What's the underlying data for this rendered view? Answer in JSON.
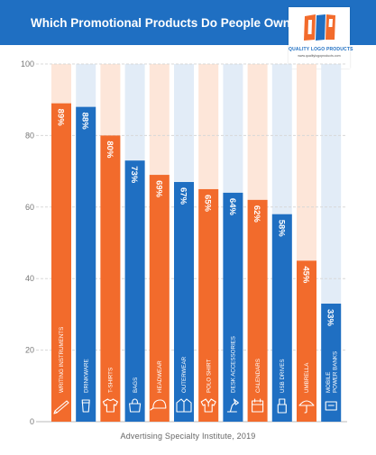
{
  "title": "Which Promotional Products Do People Own?",
  "logo": {
    "name": "QUALITY LOGO PRODUCTS",
    "url": "www.qualitylogoproducts.com"
  },
  "source": "Advertising Specialty Institute, 2019",
  "colors": {
    "header": "#1f6fc2",
    "orange": "#f26b2c",
    "blue": "#1f6fc2",
    "orange_track": "#fde6d9",
    "blue_track": "#e2ecf7",
    "gridline": "#d8d8d8"
  },
  "chart_data": {
    "type": "bar",
    "title": "Which Promotional Products Do People Own?",
    "xlabel": "",
    "ylabel": "",
    "ylim": [
      0,
      100
    ],
    "yticks": [
      0,
      20,
      40,
      60,
      80,
      100
    ],
    "grid": true,
    "categories": [
      "WRITING INSTRUMENTS",
      "DRINKWARE",
      "T-SHIRTS",
      "BAGS",
      "HEADWEAR",
      "OUTERWEAR",
      "POLO SHIRT",
      "DESK ACCESSORIES",
      "CALENDARS",
      "USB DRIVES",
      "UMBRELLA",
      "MOBILE POWER BANKS"
    ],
    "category_label_lines": [
      [
        "WRITING INSTRUMENTS"
      ],
      [
        "DRINKWARE"
      ],
      [
        "T-SHIRTS"
      ],
      [
        "BAGS"
      ],
      [
        "HEADWEAR"
      ],
      [
        "OUTERWEAR"
      ],
      [
        "POLO SHIRT"
      ],
      [
        "DESK ACCESSORIES"
      ],
      [
        "CALENDARS"
      ],
      [
        "USB DRIVES"
      ],
      [
        "UMBRELLA"
      ],
      [
        "MOBILE",
        "POWER BANKS"
      ]
    ],
    "values": [
      89,
      88,
      80,
      73,
      69,
      67,
      65,
      64,
      62,
      58,
      45,
      33
    ],
    "value_labels": [
      "89%",
      "88%",
      "80%",
      "73%",
      "69%",
      "67%",
      "65%",
      "64%",
      "62%",
      "58%",
      "45%",
      "33%"
    ],
    "bar_colors": [
      "orange",
      "blue",
      "orange",
      "blue",
      "orange",
      "blue",
      "orange",
      "blue",
      "orange",
      "blue",
      "orange",
      "blue"
    ],
    "icons": [
      "pen-icon",
      "cup-icon",
      "tshirt-icon",
      "bag-icon",
      "cap-icon",
      "jacket-icon",
      "polo-icon",
      "desk-lamp-icon",
      "calendar-icon",
      "usb-icon",
      "umbrella-icon",
      "power-bank-icon"
    ]
  }
}
